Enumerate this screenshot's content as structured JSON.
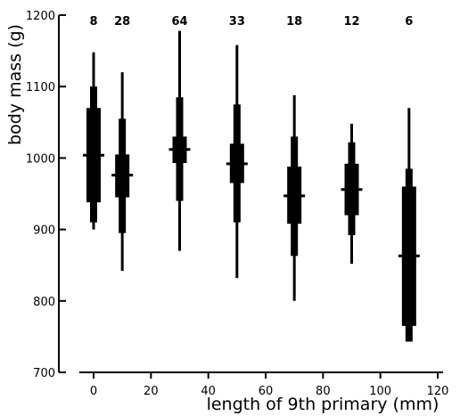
{
  "chart_data": {
    "type": "box",
    "xlabel": "length of 9th primary (mm)",
    "ylabel": "body mass (g)",
    "xlim": [
      -5,
      122
    ],
    "ylim": [
      700,
      1200
    ],
    "x_ticks": [
      0,
      20,
      40,
      60,
      80,
      100,
      120
    ],
    "y_ticks": [
      700,
      800,
      900,
      1000,
      1100,
      1200
    ],
    "grid": false,
    "legend": "none",
    "colors": {
      "ink": "#000000",
      "background": "#ffffff"
    },
    "groups": [
      {
        "x": 0,
        "n": "8",
        "min": 900,
        "sd_low": 910,
        "q1": 938,
        "mean": 1004,
        "q3": 1070,
        "sd_high": 1100,
        "max": 1148
      },
      {
        "x": 10,
        "n": "28",
        "min": 842,
        "sd_low": 895,
        "q1": 945,
        "mean": 976,
        "q3": 1005,
        "sd_high": 1055,
        "max": 1120
      },
      {
        "x": 30,
        "n": "64",
        "min": 870,
        "sd_low": 940,
        "q1": 993,
        "mean": 1012,
        "q3": 1030,
        "sd_high": 1085,
        "max": 1178
      },
      {
        "x": 50,
        "n": "33",
        "min": 832,
        "sd_low": 910,
        "q1": 965,
        "mean": 992,
        "q3": 1020,
        "sd_high": 1075,
        "max": 1158
      },
      {
        "x": 70,
        "n": "18",
        "min": 800,
        "sd_low": 863,
        "q1": 908,
        "mean": 947,
        "q3": 988,
        "sd_high": 1030,
        "max": 1088
      },
      {
        "x": 90,
        "n": "12",
        "min": 852,
        "sd_low": 892,
        "q1": 920,
        "mean": 956,
        "q3": 992,
        "sd_high": 1022,
        "max": 1048
      },
      {
        "x": 110,
        "n": "6",
        "min": 743,
        "sd_low": 743,
        "q1": 765,
        "mean": 863,
        "q3": 960,
        "sd_high": 985,
        "max": 1070
      }
    ]
  }
}
